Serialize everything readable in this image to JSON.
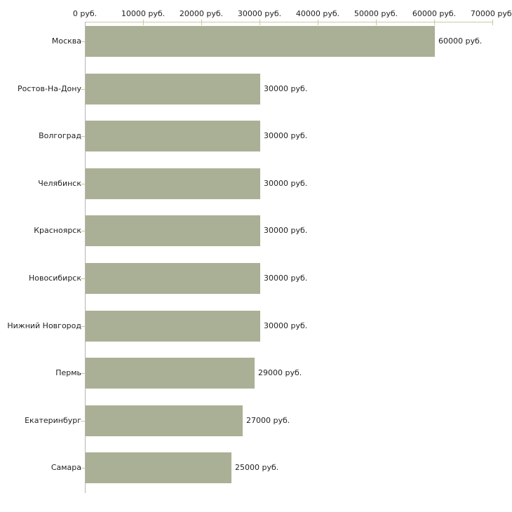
{
  "chart_data": {
    "type": "bar",
    "orientation": "horizontal",
    "title": "",
    "xlabel": "",
    "ylabel": "",
    "categories": [
      "Москва",
      "Ростов-На-Дону",
      "Волгоград",
      "Челябинск",
      "Красноярск",
      "Новосибирск",
      "Нижний Новгород",
      "Пермь",
      "Екатеринбург",
      "Самара"
    ],
    "values": [
      60000,
      30000,
      30000,
      30000,
      30000,
      30000,
      30000,
      29000,
      27000,
      25000
    ],
    "bar_value_labels": [
      "60000 руб.",
      "30000 руб.",
      "30000 руб.",
      "30000 руб.",
      "30000 руб.",
      "30000 руб.",
      "30000 руб.",
      "29000 руб.",
      "27000 руб.",
      "25000 руб."
    ],
    "x_axis": {
      "position": "top",
      "min": 0,
      "max": 70000,
      "tick_values": [
        0,
        10000,
        20000,
        30000,
        40000,
        50000,
        60000,
        70000
      ],
      "tick_labels": [
        "0 руб.",
        "10000 руб.",
        "20000 руб.",
        "30000 руб.",
        "40000 руб.",
        "50000 руб.",
        "60000 руб.",
        "70000 руб."
      ]
    },
    "grid": false,
    "legend": false,
    "colors": {
      "bar": "#aab095",
      "axis_line": "#c9c9a0",
      "tick": "#c9c99a",
      "y_axis_line": "#b5b5b5",
      "text": "#1f1f1f",
      "background": "#ffffff"
    }
  }
}
